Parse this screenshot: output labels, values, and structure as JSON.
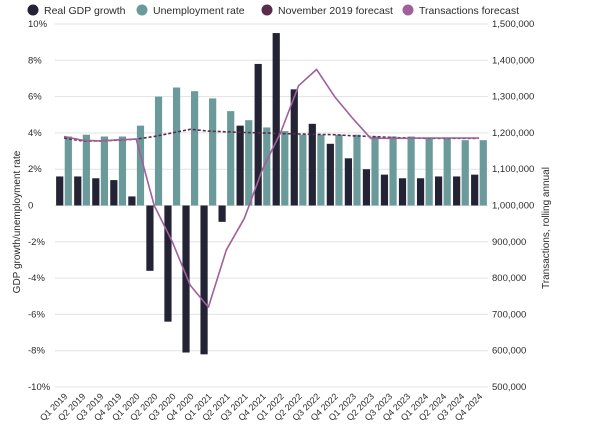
{
  "chart_data": {
    "type": "bar",
    "title": "",
    "y_left_label": "GDP growth/unemployment rate",
    "y_right_label": "Transactions, rolling annual",
    "ylim_left": [
      -10,
      10
    ],
    "ylim_right": [
      500000,
      1500000
    ],
    "left_ticks": [
      "10%",
      "8%",
      "6%",
      "4%",
      "2%",
      "0",
      "-2%",
      "-4%",
      "-6%",
      "-8%",
      "-10%"
    ],
    "right_ticks": [
      "1,500,000",
      "1,400,000",
      "1,300,000",
      "1,200,000",
      "1,100,000",
      "1,000,000",
      "900,000",
      "800,000",
      "700,000",
      "600,000",
      "500,000"
    ],
    "grid": true,
    "legend_position": "top",
    "categories": [
      "Q1 2019",
      "Q2 2019",
      "Q3 2019",
      "Q4 2019",
      "Q1 2020",
      "Q2 2020",
      "Q3 2020",
      "Q4 2020",
      "Q1 2021",
      "Q2 2021",
      "Q3 2021",
      "Q4 2021",
      "Q1 2022",
      "Q2 2022",
      "Q3 2022",
      "Q4 2022",
      "Q1 2023",
      "Q2 2023",
      "Q3 2023",
      "Q4 2023",
      "Q1 2024",
      "Q2 2024",
      "Q3 2024",
      "Q4 2024"
    ],
    "series": [
      {
        "name": "Real GDP growth",
        "kind": "bar",
        "axis": "left",
        "color": "#232335",
        "values": [
          1.6,
          1.6,
          1.5,
          1.4,
          0.5,
          -3.6,
          -6.4,
          -8.1,
          -8.2,
          -0.9,
          4.4,
          7.8,
          9.5,
          6.4,
          4.5,
          3.4,
          2.6,
          2.0,
          1.7,
          1.5,
          1.5,
          1.6,
          1.6,
          1.7
        ]
      },
      {
        "name": "Unemployment rate",
        "kind": "bar",
        "axis": "left",
        "color": "#6a9a9a",
        "values": [
          3.8,
          3.9,
          3.8,
          3.8,
          4.4,
          6.0,
          6.5,
          6.3,
          5.9,
          5.2,
          4.7,
          4.3,
          4.1,
          3.9,
          3.9,
          3.9,
          3.9,
          3.8,
          3.8,
          3.8,
          3.7,
          3.7,
          3.6,
          3.6
        ]
      },
      {
        "name": "November 2019 forecast",
        "kind": "line",
        "axis": "right",
        "style": "dashed",
        "color": "#5a2c4c",
        "values": [
          1186000,
          1178000,
          1178000,
          1180000,
          1183000,
          1190000,
          1200000,
          1210000,
          1205000,
          1203000,
          1201000,
          1200000,
          1198000,
          1197000,
          1196000,
          1195000,
          1192000,
          1190000,
          1188000,
          1186000,
          1185000,
          1185000,
          1185000,
          1185000
        ]
      },
      {
        "name": "Transactions forecast",
        "kind": "line",
        "axis": "right",
        "style": "solid",
        "color": "#a0609c",
        "values": [
          1190000,
          1180000,
          1178000,
          1181000,
          1183000,
          1000000,
          900000,
          780000,
          720000,
          878000,
          965000,
          1100000,
          1200000,
          1330000,
          1375000,
          1300000,
          1240000,
          1185000,
          1185000,
          1185000,
          1186000,
          1186000,
          1186000,
          1186000
        ]
      }
    ]
  }
}
